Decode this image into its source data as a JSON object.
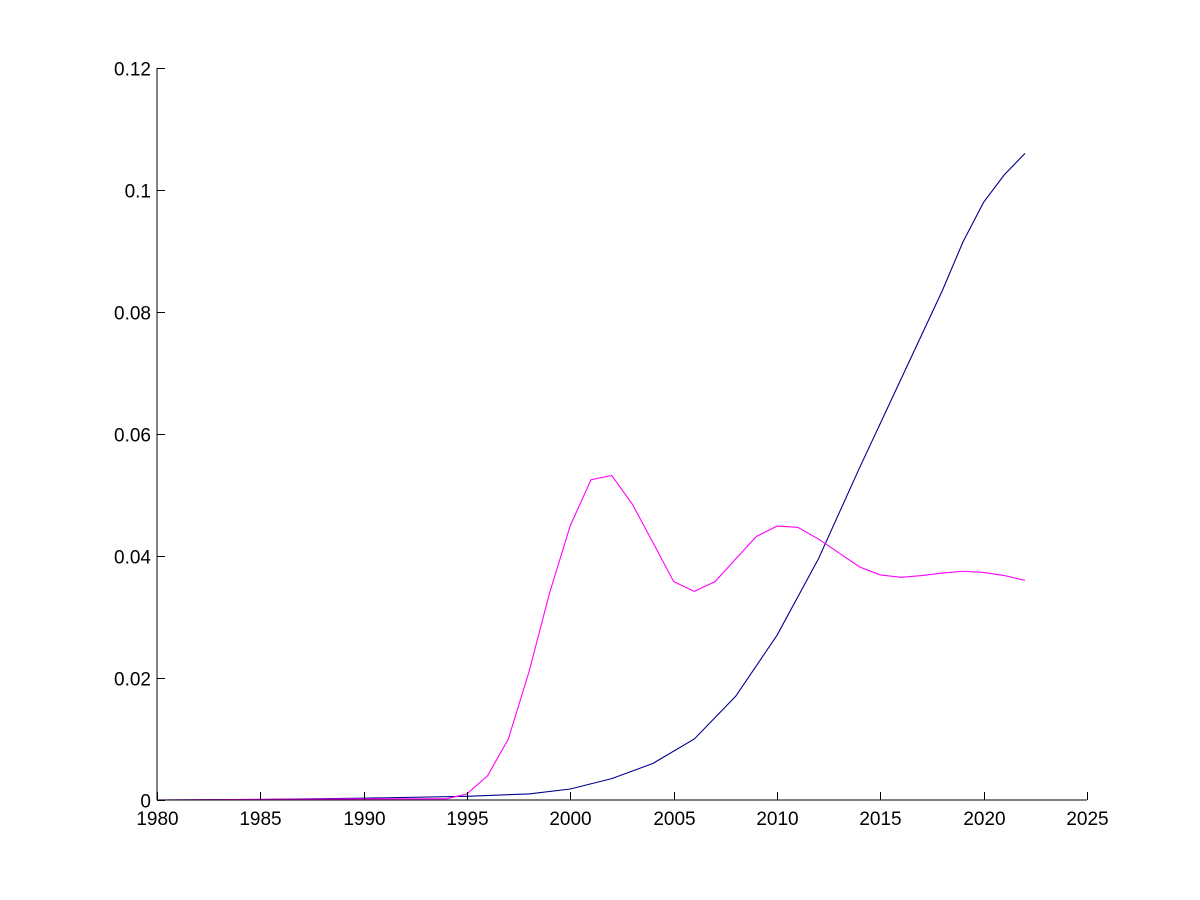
{
  "chart_data": {
    "type": "line",
    "title": "",
    "xlabel": "",
    "ylabel": "",
    "xlim": [
      1980,
      2025
    ],
    "ylim": [
      0,
      0.12
    ],
    "grid": false,
    "x_ticks": [
      1980,
      1985,
      1990,
      1995,
      2000,
      2005,
      2010,
      2015,
      2020,
      2025
    ],
    "y_ticks": [
      0,
      0.02,
      0.04,
      0.06,
      0.08,
      0.1,
      0.12
    ],
    "x_tick_labels": [
      "1980",
      "1985",
      "1990",
      "1995",
      "2000",
      "2005",
      "2010",
      "2015",
      "2020",
      "2025"
    ],
    "y_tick_labels": [
      "0",
      "0.02",
      "0.04",
      "0.06",
      "0.08",
      "0.1",
      "0.12"
    ],
    "series": [
      {
        "color": "#00008b",
        "x": [
          1980,
          1985,
          1990,
          1995,
          1998,
          2000,
          2002,
          2004,
          2006,
          2008,
          2010,
          2012,
          2014,
          2016,
          2018,
          2019,
          2020,
          2021,
          2022
        ],
        "y": [
          0,
          0.0001,
          0.0003,
          0.0006,
          0.001,
          0.0018,
          0.0035,
          0.006,
          0.01,
          0.017,
          0.027,
          0.0395,
          0.0545,
          0.069,
          0.0835,
          0.0915,
          0.098,
          0.1025,
          0.106
        ]
      },
      {
        "color": "#ff00ff",
        "x": [
          1980,
          1985,
          1990,
          1994,
          1995,
          1996,
          1997,
          1998,
          1999,
          2000,
          2001,
          2002,
          2003,
          2004,
          2005,
          2006,
          2007,
          2008,
          2009,
          2010,
          2011,
          2012,
          2013,
          2014,
          2015,
          2016,
          2017,
          2018,
          2019,
          2020,
          2021,
          2022
        ],
        "y": [
          0,
          0.0001,
          0.0002,
          0.0002,
          0.001,
          0.004,
          0.01,
          0.021,
          0.034,
          0.045,
          0.0525,
          0.0532,
          0.0485,
          0.0422,
          0.0358,
          0.0342,
          0.0358,
          0.0395,
          0.0432,
          0.0449,
          0.0447,
          0.0428,
          0.0405,
          0.0382,
          0.0369,
          0.0365,
          0.0368,
          0.0372,
          0.0375,
          0.0373,
          0.0368,
          0.036
        ]
      }
    ]
  }
}
